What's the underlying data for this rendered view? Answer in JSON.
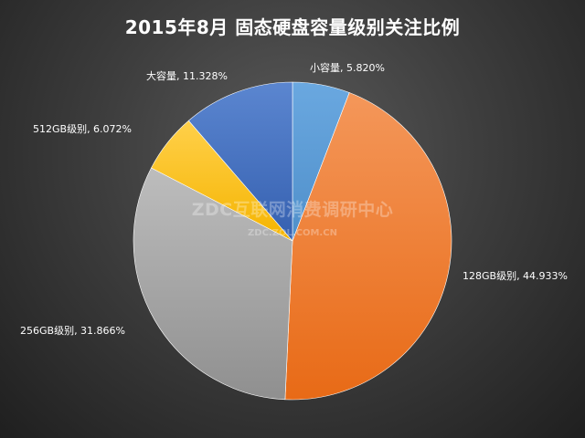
{
  "chart_data": {
    "type": "pie",
    "title": "2015年8月  固态硬盘容量级别关注比例",
    "start_angle_deg": 0,
    "direction": "clockwise",
    "slices": [
      {
        "label": "小容量",
        "value": 5.82,
        "display": "小容量, 5.820%",
        "color": "#5b9bd5"
      },
      {
        "label": "128GB级别",
        "value": 44.933,
        "display": "128GB级别, 44.933%",
        "color": "#ed7d31"
      },
      {
        "label": "256GB级别",
        "value": 31.866,
        "display": "256GB级别, 31.866%",
        "color": "#a5a5a5"
      },
      {
        "label": "512GB级别",
        "value": 6.072,
        "display": "512GB级别, 6.072%",
        "color": "#ffc000"
      },
      {
        "label": "大容量",
        "value": 11.328,
        "display": "大容量, 11.328%",
        "color": "#4472c4"
      }
    ],
    "legend": "none"
  },
  "watermark": {
    "line1": "ZDC互联网消费调研中心",
    "line2": "ZDC.ZOL.COM.CN"
  }
}
